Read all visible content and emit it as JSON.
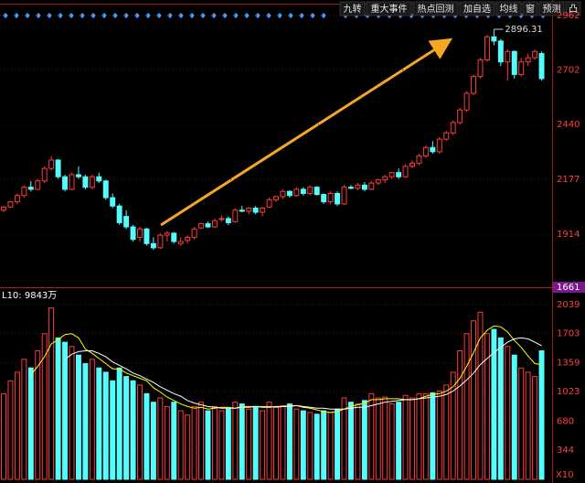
{
  "chart_data": {
    "type": "candlestick",
    "toolbar": [
      "九转",
      "重大事件",
      "热点回测",
      "加自选",
      "均线",
      "窗",
      "预测",
      "凸"
    ],
    "price": {
      "open": [
        2030,
        2045,
        2070,
        2100,
        2140,
        2130,
        2170,
        2230,
        2270,
        2190,
        2130,
        2200,
        2190,
        2140,
        2190,
        2170,
        2090,
        2050,
        2000,
        1950,
        1900,
        1940,
        1870,
        1850,
        1910,
        1920,
        1870,
        1885,
        1900,
        1945,
        1965,
        1950,
        1985,
        1990,
        1975,
        2030,
        2025,
        2040,
        2020,
        2045,
        2080,
        2095,
        2120,
        2100,
        2130,
        2110,
        2140,
        2105,
        2070,
        2110,
        2060,
        2140,
        2135,
        2150,
        2130,
        2160,
        2175,
        2190,
        2210,
        2190,
        2240,
        2255,
        2290,
        2330,
        2310,
        2370,
        2400,
        2450,
        2510,
        2590,
        2670,
        2750,
        2860,
        2840,
        2740,
        2790,
        2680,
        2740,
        2760,
        2780
      ],
      "high": [
        2050,
        2075,
        2110,
        2150,
        2170,
        2180,
        2240,
        2290,
        2275,
        2200,
        2210,
        2240,
        2200,
        2200,
        2210,
        2175,
        2110,
        2060,
        2030,
        1960,
        1950,
        1945,
        1900,
        1920,
        1930,
        1925,
        1900,
        1910,
        1950,
        1970,
        1975,
        1990,
        2005,
        2000,
        2040,
        2050,
        2045,
        2050,
        2045,
        2090,
        2100,
        2130,
        2125,
        2140,
        2140,
        2150,
        2145,
        2110,
        2120,
        2120,
        2150,
        2150,
        2160,
        2165,
        2170,
        2180,
        2200,
        2215,
        2230,
        2250,
        2270,
        2300,
        2340,
        2360,
        2380,
        2410,
        2460,
        2520,
        2600,
        2680,
        2760,
        2870,
        2896.31,
        2850,
        2800,
        2795,
        2760,
        2780,
        2800,
        2790
      ],
      "low": [
        2020,
        2040,
        2060,
        2090,
        2120,
        2125,
        2160,
        2220,
        2180,
        2120,
        2125,
        2180,
        2130,
        2130,
        2160,
        2080,
        2040,
        1960,
        1940,
        1880,
        1880,
        1860,
        1840,
        1845,
        1880,
        1870,
        1860,
        1870,
        1890,
        1940,
        1945,
        1945,
        1975,
        1960,
        1970,
        2020,
        2010,
        2010,
        2000,
        2040,
        2070,
        2085,
        2090,
        2095,
        2100,
        2100,
        2100,
        2060,
        2060,
        2050,
        2055,
        2130,
        2125,
        2120,
        2125,
        2150,
        2160,
        2180,
        2180,
        2185,
        2230,
        2245,
        2280,
        2300,
        2300,
        2360,
        2390,
        2440,
        2500,
        2580,
        2660,
        2740,
        2820,
        2720,
        2650,
        2660,
        2670,
        2720,
        2750,
        2650
      ],
      "close": [
        2045,
        2070,
        2100,
        2140,
        2130,
        2170,
        2230,
        2270,
        2190,
        2130,
        2200,
        2190,
        2140,
        2190,
        2170,
        2090,
        2050,
        1970,
        1950,
        1890,
        1940,
        1870,
        1850,
        1910,
        1920,
        1880,
        1880,
        1900,
        1940,
        1965,
        1950,
        1980,
        1990,
        1970,
        2030,
        2025,
        2040,
        2020,
        2040,
        2080,
        2095,
        2120,
        2100,
        2130,
        2110,
        2140,
        2105,
        2070,
        2110,
        2060,
        2140,
        2135,
        2150,
        2130,
        2160,
        2175,
        2190,
        2210,
        2190,
        2240,
        2255,
        2290,
        2330,
        2310,
        2370,
        2400,
        2450,
        2510,
        2590,
        2670,
        2750,
        2860,
        2840,
        2740,
        2790,
        2680,
        2740,
        2760,
        2790,
        2660
      ],
      "ylim": [
        1661,
        2962
      ],
      "yticks": [
        2962,
        2702,
        2440,
        2177,
        1914,
        1661
      ],
      "up_color": "#ff3b3b",
      "down_color": "#54fcfc",
      "high_label": "2896.31"
    },
    "volume": {
      "label": "L10: 9843万",
      "values": [
        1000,
        1150,
        1250,
        1400,
        1300,
        1500,
        1700,
        2000,
        1650,
        1600,
        1550,
        1450,
        1350,
        1400,
        1300,
        1250,
        1150,
        1300,
        1200,
        1150,
        1100,
        1000,
        900,
        950,
        850,
        900,
        800,
        750,
        850,
        900,
        800,
        850,
        800,
        820,
        900,
        880,
        820,
        850,
        800,
        900,
        850,
        860,
        880,
        820,
        800,
        780,
        760,
        800,
        780,
        820,
        950,
        900,
        880,
        920,
        1000,
        950,
        960,
        880,
        900,
        980,
        950,
        1000,
        1000,
        1010,
        1030,
        1100,
        1250,
        1500,
        1700,
        1850,
        1950,
        1700,
        1750,
        1650,
        1550,
        1450,
        1300,
        1250,
        1200,
        1500
      ],
      "ylim": [
        0,
        2039
      ],
      "yticks": [
        2039,
        1703,
        1359,
        1023,
        680,
        344
      ],
      "unit_label": "X10",
      "ma": [
        {
          "color": "#ffff00",
          "values": [
            null,
            null,
            null,
            null,
            1220,
            1320,
            1430,
            1580,
            1630,
            1690,
            1700,
            1650,
            1520,
            1470,
            1410,
            1350,
            1290,
            1290,
            1240,
            1210,
            1180,
            1150,
            1070,
            1020,
            960,
            920,
            880,
            850,
            830,
            840,
            820,
            830,
            840,
            840,
            830,
            850,
            850,
            850,
            850,
            850,
            840,
            850,
            860,
            860,
            840,
            830,
            810,
            790,
            780,
            790,
            820,
            850,
            870,
            890,
            930,
            930,
            940,
            940,
            940,
            930,
            930,
            940,
            970,
            990,
            1000,
            1030,
            1080,
            1180,
            1320,
            1480,
            1650,
            1740,
            1790,
            1780,
            1720,
            1620,
            1540,
            1440,
            1350,
            1340
          ]
        },
        {
          "color": "#ffffff",
          "values": [
            null,
            null,
            null,
            null,
            null,
            null,
            null,
            null,
            null,
            1400,
            1460,
            1490,
            1500,
            1500,
            1470,
            1430,
            1370,
            1330,
            1290,
            1240,
            1210,
            1170,
            1130,
            1080,
            1040,
            1000,
            970,
            920,
            890,
            870,
            850,
            840,
            830,
            830,
            830,
            840,
            840,
            850,
            840,
            840,
            850,
            850,
            850,
            860,
            850,
            840,
            830,
            830,
            820,
            820,
            820,
            830,
            840,
            840,
            860,
            880,
            900,
            910,
            920,
            930,
            930,
            940,
            950,
            960,
            970,
            990,
            1030,
            1090,
            1160,
            1240,
            1340,
            1410,
            1480,
            1540,
            1600,
            1640,
            1650,
            1640,
            1600,
            1560
          ]
        }
      ]
    }
  }
}
